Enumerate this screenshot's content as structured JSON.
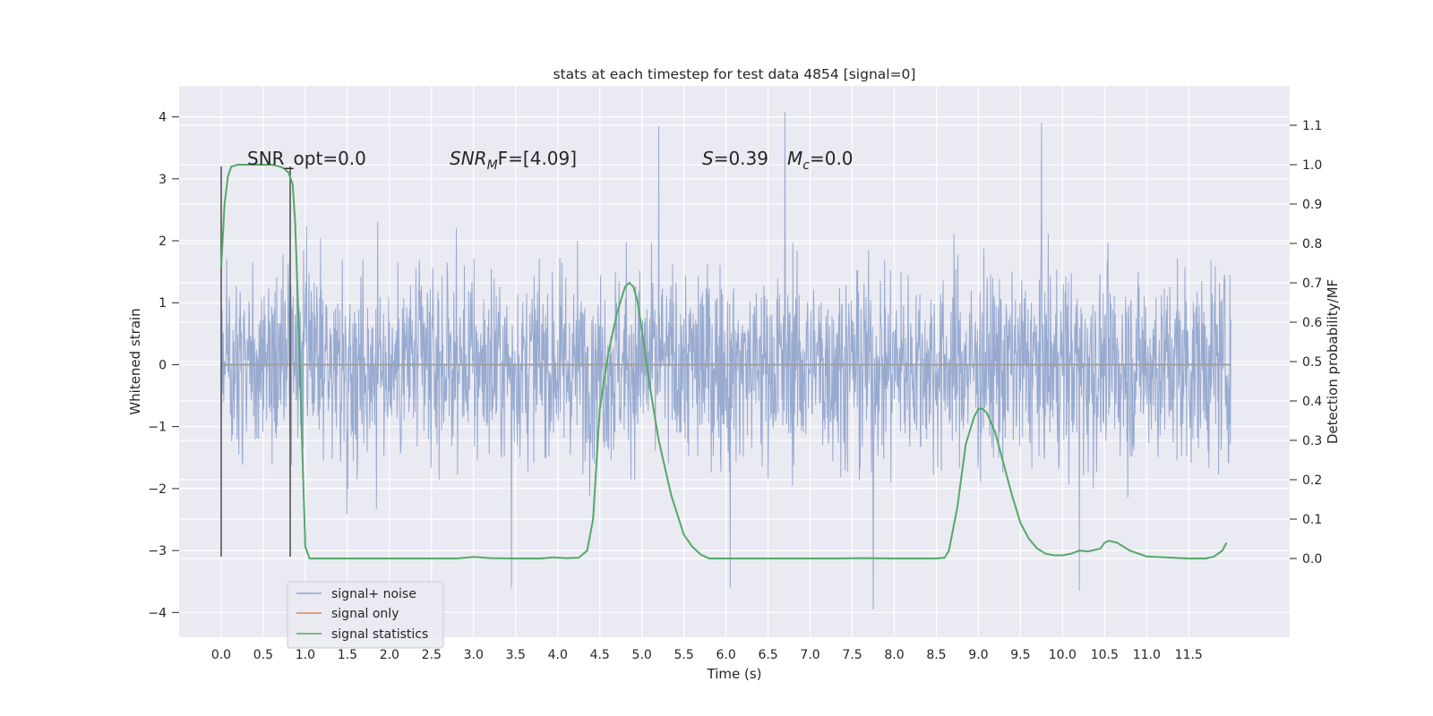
{
  "chart_data": {
    "type": "line",
    "title": "stats at each timestep for test data 4854 [signal=0]",
    "xlabel": "Time (s)",
    "ylabel_left": "Whitened strain",
    "ylabel_right": "Detection probability/MF",
    "xlim": [
      -0.5,
      12.7
    ],
    "ylim_left": [
      -4.4,
      4.5
    ],
    "ylim_right": [
      -0.2,
      1.2
    ],
    "x_ticks": [
      "0.0",
      "0.5",
      "1.0",
      "1.5",
      "2.0",
      "2.5",
      "3.0",
      "3.5",
      "4.0",
      "4.5",
      "5.0",
      "5.5",
      "6.0",
      "6.5",
      "7.0",
      "7.5",
      "8.0",
      "8.5",
      "9.0",
      "9.5",
      "10.0",
      "10.5",
      "11.0",
      "11.5"
    ],
    "y_ticks_left": [
      "4",
      "3",
      "2",
      "1",
      "0",
      "−1",
      "−2",
      "−3",
      "−4"
    ],
    "y_ticks_right": [
      "1.1",
      "1.0",
      "0.9",
      "0.8",
      "0.7",
      "0.6",
      "0.5",
      "0.4",
      "0.3",
      "0.2",
      "0.1",
      "0.0"
    ],
    "grid": true,
    "legend_placement": "lower-left",
    "annotations": {
      "snr_opt": "SNR_opt=0.0",
      "snr_mf_base": "SNR",
      "snr_mf_sub": "M",
      "snr_mf_rest": "F=[4.09]",
      "s_var": "S",
      "s_value": "=0.39",
      "mc_var": "M",
      "mc_sub": "c",
      "mc_value": "=0.0"
    },
    "series": [
      {
        "name": "signal+ noise",
        "color": "#8fa3cc",
        "x_range": [
          0.0,
          12.0
        ],
        "sample_spacing": 0.005,
        "envelope_typical": [
          -2.0,
          2.0
        ],
        "notable_peaks": [
          {
            "x": 6.7,
            "y": 4.08
          },
          {
            "x": 9.75,
            "y": 3.9
          },
          {
            "x": 5.2,
            "y": 3.85
          },
          {
            "x": 7.75,
            "y": -3.95
          },
          {
            "x": 10.2,
            "y": -3.65
          },
          {
            "x": 3.45,
            "y": -3.6
          },
          {
            "x": 6.05,
            "y": -3.6
          }
        ]
      },
      {
        "name": "signal only",
        "color": "#dd8452",
        "x": [
          0.0,
          12.0
        ],
        "values": [
          0.0,
          0.0
        ]
      },
      {
        "name": "signal statistics",
        "color": "#55a868",
        "axis": "right",
        "x": [
          0.0,
          0.04,
          0.08,
          0.12,
          0.2,
          0.3,
          0.4,
          0.5,
          0.6,
          0.7,
          0.75,
          0.8,
          0.85,
          0.88,
          0.92,
          0.96,
          1.0,
          1.05,
          1.1,
          1.5,
          2.0,
          2.5,
          2.8,
          3.0,
          3.2,
          3.5,
          3.8,
          3.95,
          4.1,
          4.25,
          4.35,
          4.42,
          4.5,
          4.6,
          4.7,
          4.8,
          4.85,
          4.9,
          4.95,
          5.0,
          5.1,
          5.2,
          5.35,
          5.5,
          5.6,
          5.7,
          5.8,
          6.0,
          6.5,
          7.0,
          7.3,
          7.6,
          8.0,
          8.3,
          8.5,
          8.6,
          8.65,
          8.75,
          8.85,
          8.95,
          9.0,
          9.05,
          9.1,
          9.2,
          9.3,
          9.4,
          9.5,
          9.6,
          9.7,
          9.8,
          9.9,
          10.0,
          10.1,
          10.2,
          10.3,
          10.35,
          10.45,
          10.5,
          10.55,
          10.65,
          10.8,
          11.0,
          11.5,
          11.7,
          11.8,
          11.9,
          11.95
        ],
        "values": [
          0.74,
          0.9,
          0.97,
          0.995,
          1.0,
          1.0,
          1.0,
          1.0,
          1.0,
          0.995,
          0.99,
          0.98,
          0.95,
          0.85,
          0.6,
          0.3,
          0.03,
          0.0,
          0.0,
          0.0,
          0.0,
          0.0,
          0.0,
          0.004,
          0.001,
          0.0,
          0.0,
          0.003,
          0.001,
          0.002,
          0.02,
          0.1,
          0.38,
          0.52,
          0.62,
          0.69,
          0.7,
          0.69,
          0.65,
          0.58,
          0.43,
          0.3,
          0.16,
          0.06,
          0.03,
          0.01,
          0.0,
          0.0,
          0.0,
          0.0,
          0.0,
          0.001,
          0.0,
          0.0,
          0.0,
          0.002,
          0.02,
          0.13,
          0.29,
          0.36,
          0.38,
          0.38,
          0.37,
          0.32,
          0.24,
          0.16,
          0.09,
          0.05,
          0.025,
          0.012,
          0.008,
          0.008,
          0.012,
          0.02,
          0.018,
          0.02,
          0.025,
          0.04,
          0.045,
          0.04,
          0.02,
          0.005,
          0.0,
          0.0,
          0.005,
          0.02,
          0.04
        ]
      }
    ],
    "markers": {
      "segment_x": [
        0.0,
        0.82
      ],
      "segment_y": [
        3.2,
        -3.1
      ],
      "color": "#555555"
    }
  }
}
